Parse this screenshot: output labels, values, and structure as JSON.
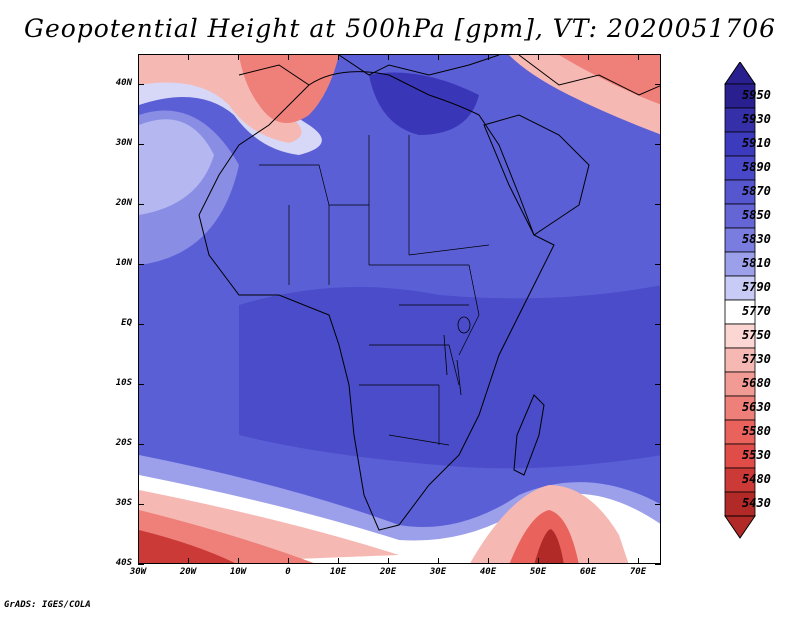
{
  "title": "Geopotential Height at 500hPa [gpm], VT: 2020051706",
  "footer": "GrADS: IGES/COLA",
  "map": {
    "lat_labels": [
      "40N",
      "30N",
      "20N",
      "10N",
      "EQ",
      "10S",
      "20S",
      "30S",
      "40S"
    ],
    "lon_labels": [
      "30W",
      "20W",
      "10W",
      "0",
      "10E",
      "20E",
      "30E",
      "40E",
      "50E",
      "60E",
      "70E"
    ]
  },
  "colorbar": {
    "levels": [
      {
        "label": "5950",
        "color": "#2a1f8f"
      },
      {
        "label": "5930",
        "color": "#3530a8"
      },
      {
        "label": "5910",
        "color": "#3d3bbd"
      },
      {
        "label": "5890",
        "color": "#4848c8"
      },
      {
        "label": "5870",
        "color": "#5656cf"
      },
      {
        "label": "5850",
        "color": "#6565d6"
      },
      {
        "label": "5830",
        "color": "#7a7ce0"
      },
      {
        "label": "5810",
        "color": "#9c9fea"
      },
      {
        "label": "5790",
        "color": "#c8cbf5"
      },
      {
        "label": "5770",
        "color": "#ffffff"
      },
      {
        "label": "5750",
        "color": "#fbd6d3"
      },
      {
        "label": "5730",
        "color": "#f6b8b3"
      },
      {
        "label": "5680",
        "color": "#f29a94"
      },
      {
        "label": "5630",
        "color": "#ee7f79"
      },
      {
        "label": "5580",
        "color": "#e9625c"
      },
      {
        "label": "5530",
        "color": "#e04c48"
      },
      {
        "label": "5480",
        "color": "#cc3a37"
      },
      {
        "label": "5430",
        "color": "#b22a28"
      }
    ]
  }
}
